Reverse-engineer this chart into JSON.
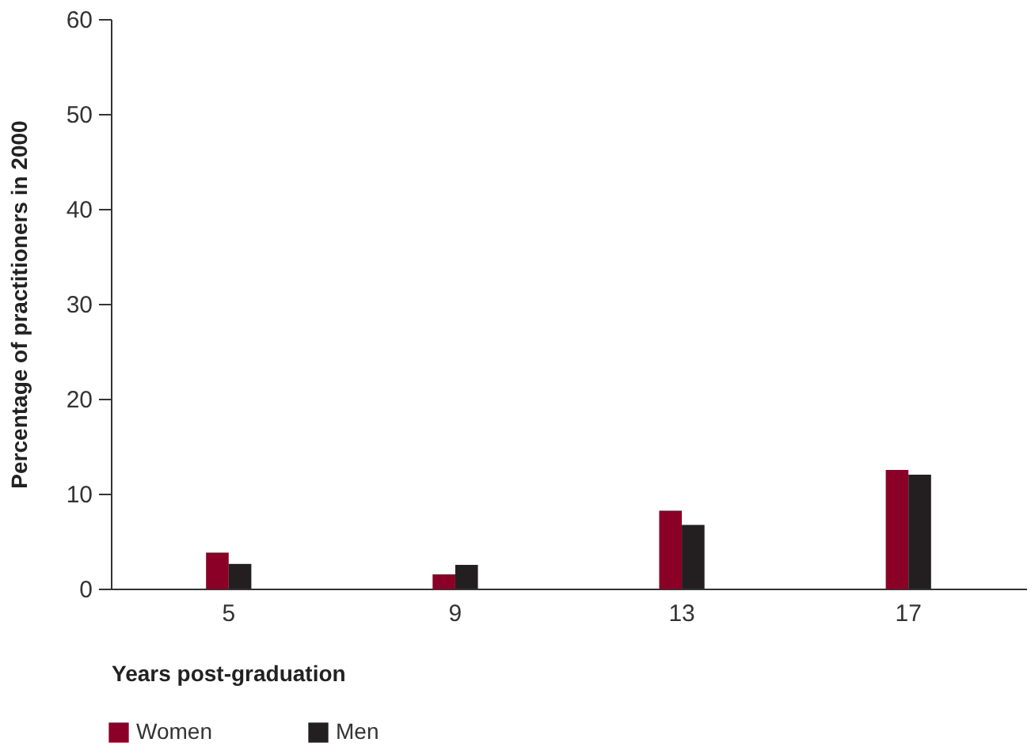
{
  "chart_data": {
    "type": "bar",
    "xlabel": "Years post-graduation",
    "ylabel": "Percentage of practitioners in 2000",
    "categories": [
      "5",
      "9",
      "13",
      "17"
    ],
    "series": [
      {
        "name": "Women",
        "color": "#8b0026",
        "values": [
          3.8,
          1.5,
          8.2,
          12.5
        ]
      },
      {
        "name": "Men",
        "color": "#231f20",
        "values": [
          2.6,
          2.5,
          6.7,
          12.0
        ]
      }
    ],
    "ylim": [
      0,
      60
    ],
    "yticks": [
      0,
      10,
      20,
      30,
      40,
      50,
      60
    ],
    "grid": false,
    "legend": "bottom left"
  }
}
